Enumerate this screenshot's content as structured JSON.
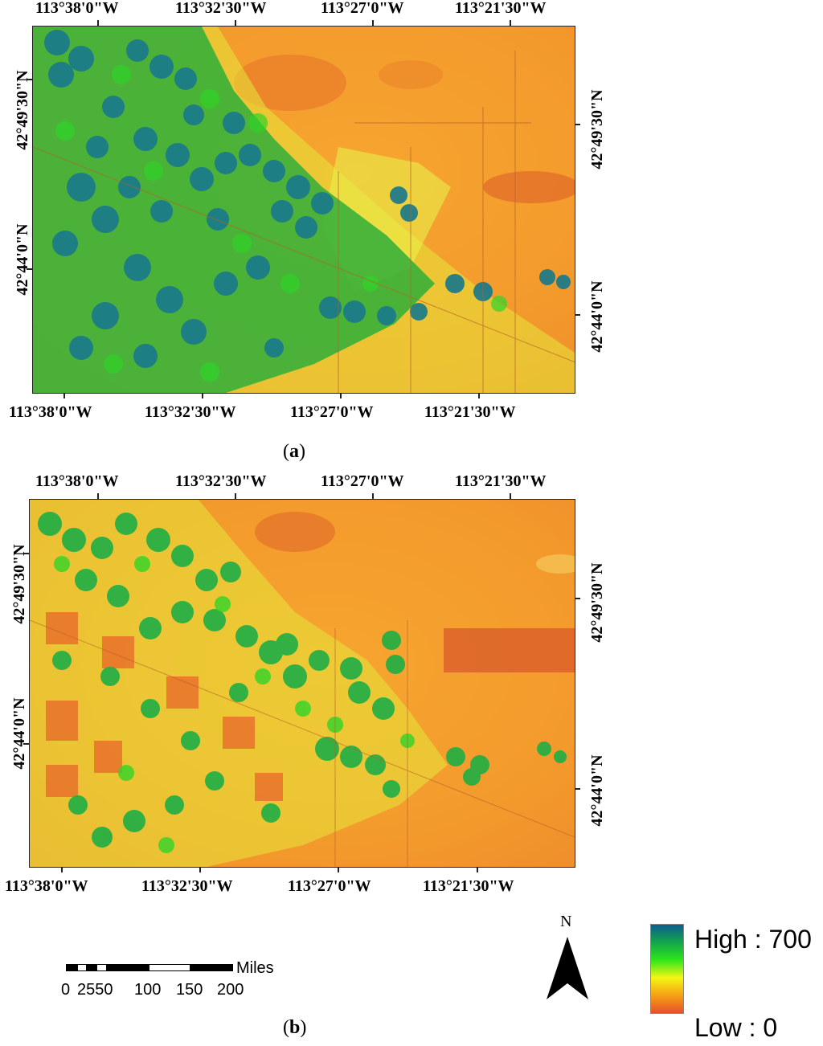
{
  "panel_a": {
    "letter": "a",
    "lon_labels_top": [
      "113°38'0\"W",
      "113°32'30\"W",
      "113°27'0\"W",
      "113°21'30\"W"
    ],
    "lon_labels_bottom": [
      "113°38'0\"W",
      "113°32'30\"W",
      "113°27'0\"W",
      "113°21'30\"W"
    ],
    "lat_labels_left": [
      "42°49'30\"N",
      "42°44'0\"N"
    ],
    "lat_labels_right": [
      "42°49'30\"N",
      "42°44'0\"N"
    ]
  },
  "panel_b": {
    "letter": "b",
    "lon_labels_top": [
      "113°38'0\"W",
      "113°32'30\"W",
      "113°27'0\"W",
      "113°21'30\"W"
    ],
    "lon_labels_bottom": [
      "113°38'0\"W",
      "113°32'30\"W",
      "113°27'0\"W",
      "113°21'30\"W"
    ],
    "lat_labels_left": [
      "42°49'30\"N",
      "42°44'0\"N"
    ],
    "lat_labels_right": [
      "42°49'30\"N",
      "42°44'0\"N"
    ]
  },
  "scale_bar": {
    "unit": "Miles",
    "ticks": [
      "0",
      "2550",
      "100",
      "150",
      "200"
    ]
  },
  "north_arrow": {
    "label": "N"
  },
  "legend": {
    "high_label": "High : 700",
    "low_label": "Low : 0",
    "high_value": 700,
    "low_value": 0,
    "colors": [
      "#0b5e8f",
      "#14a64a",
      "#2ee61a",
      "#f5f514",
      "#f5a014",
      "#e8502a"
    ]
  },
  "map_colors": {
    "background": "#f39a2c",
    "background_dark": "#e0692a",
    "fields_high": "#1a7a8a",
    "fields_mid": "#1fae45",
    "fields_bright": "#2fd428",
    "transition": "#d8e83a"
  }
}
